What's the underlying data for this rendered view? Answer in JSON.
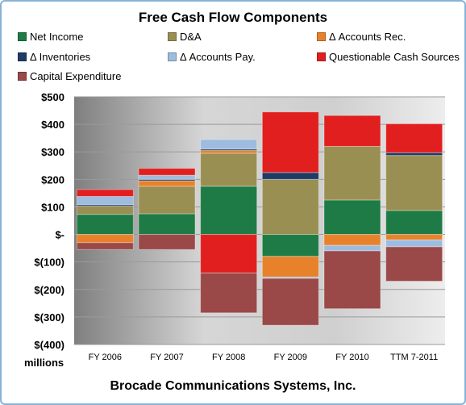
{
  "chart_data": {
    "type": "bar",
    "title": "Free Cash Flow Components",
    "subtitle_bottom": "Brocade Communications Systems, Inc.",
    "units_label": "millions",
    "categories": [
      "FY 2006",
      "FY 2007",
      "FY 2008",
      "FY 2009",
      "FY 2010",
      "TTM 7-2011"
    ],
    "ylim": [
      -400,
      500
    ],
    "yticks": [
      500,
      400,
      300,
      200,
      100,
      0,
      -100,
      -200,
      -300,
      -400
    ],
    "ytick_labels": [
      "$500",
      "$400",
      "$300",
      "$200",
      "$100",
      "$-",
      "$(100)",
      "$(200)",
      "$(300)",
      "$(400)"
    ],
    "stacked": true,
    "grid": true,
    "legend_position": "top",
    "series": [
      {
        "name": "Net Income",
        "color": "#1e7b45",
        "values": [
          73,
          75,
          175,
          -80,
          125,
          87
        ]
      },
      {
        "name": "D&A",
        "color": "#9a8f52",
        "values": [
          30,
          100,
          120,
          200,
          195,
          200
        ]
      },
      {
        "name": "Δ Accounts Rec.",
        "color": "#e8822a",
        "values": [
          -30,
          20,
          10,
          -75,
          -40,
          -20
        ]
      },
      {
        "name": "Δ Inventories",
        "color": "#1f3c66",
        "values": [
          5,
          5,
          5,
          25,
          0,
          10
        ]
      },
      {
        "name": "Δ Accounts Pay.",
        "color": "#9dbce0",
        "values": [
          30,
          15,
          35,
          -5,
          -20,
          -25
        ]
      },
      {
        "name": "Questionable Cash Sources",
        "color": "#e11f1f",
        "values": [
          25,
          25,
          -140,
          220,
          112,
          105
        ]
      },
      {
        "name": "Capital Expenditure",
        "color": "#9a4848",
        "values": [
          -25,
          -55,
          -145,
          -170,
          -210,
          -125
        ]
      }
    ]
  }
}
